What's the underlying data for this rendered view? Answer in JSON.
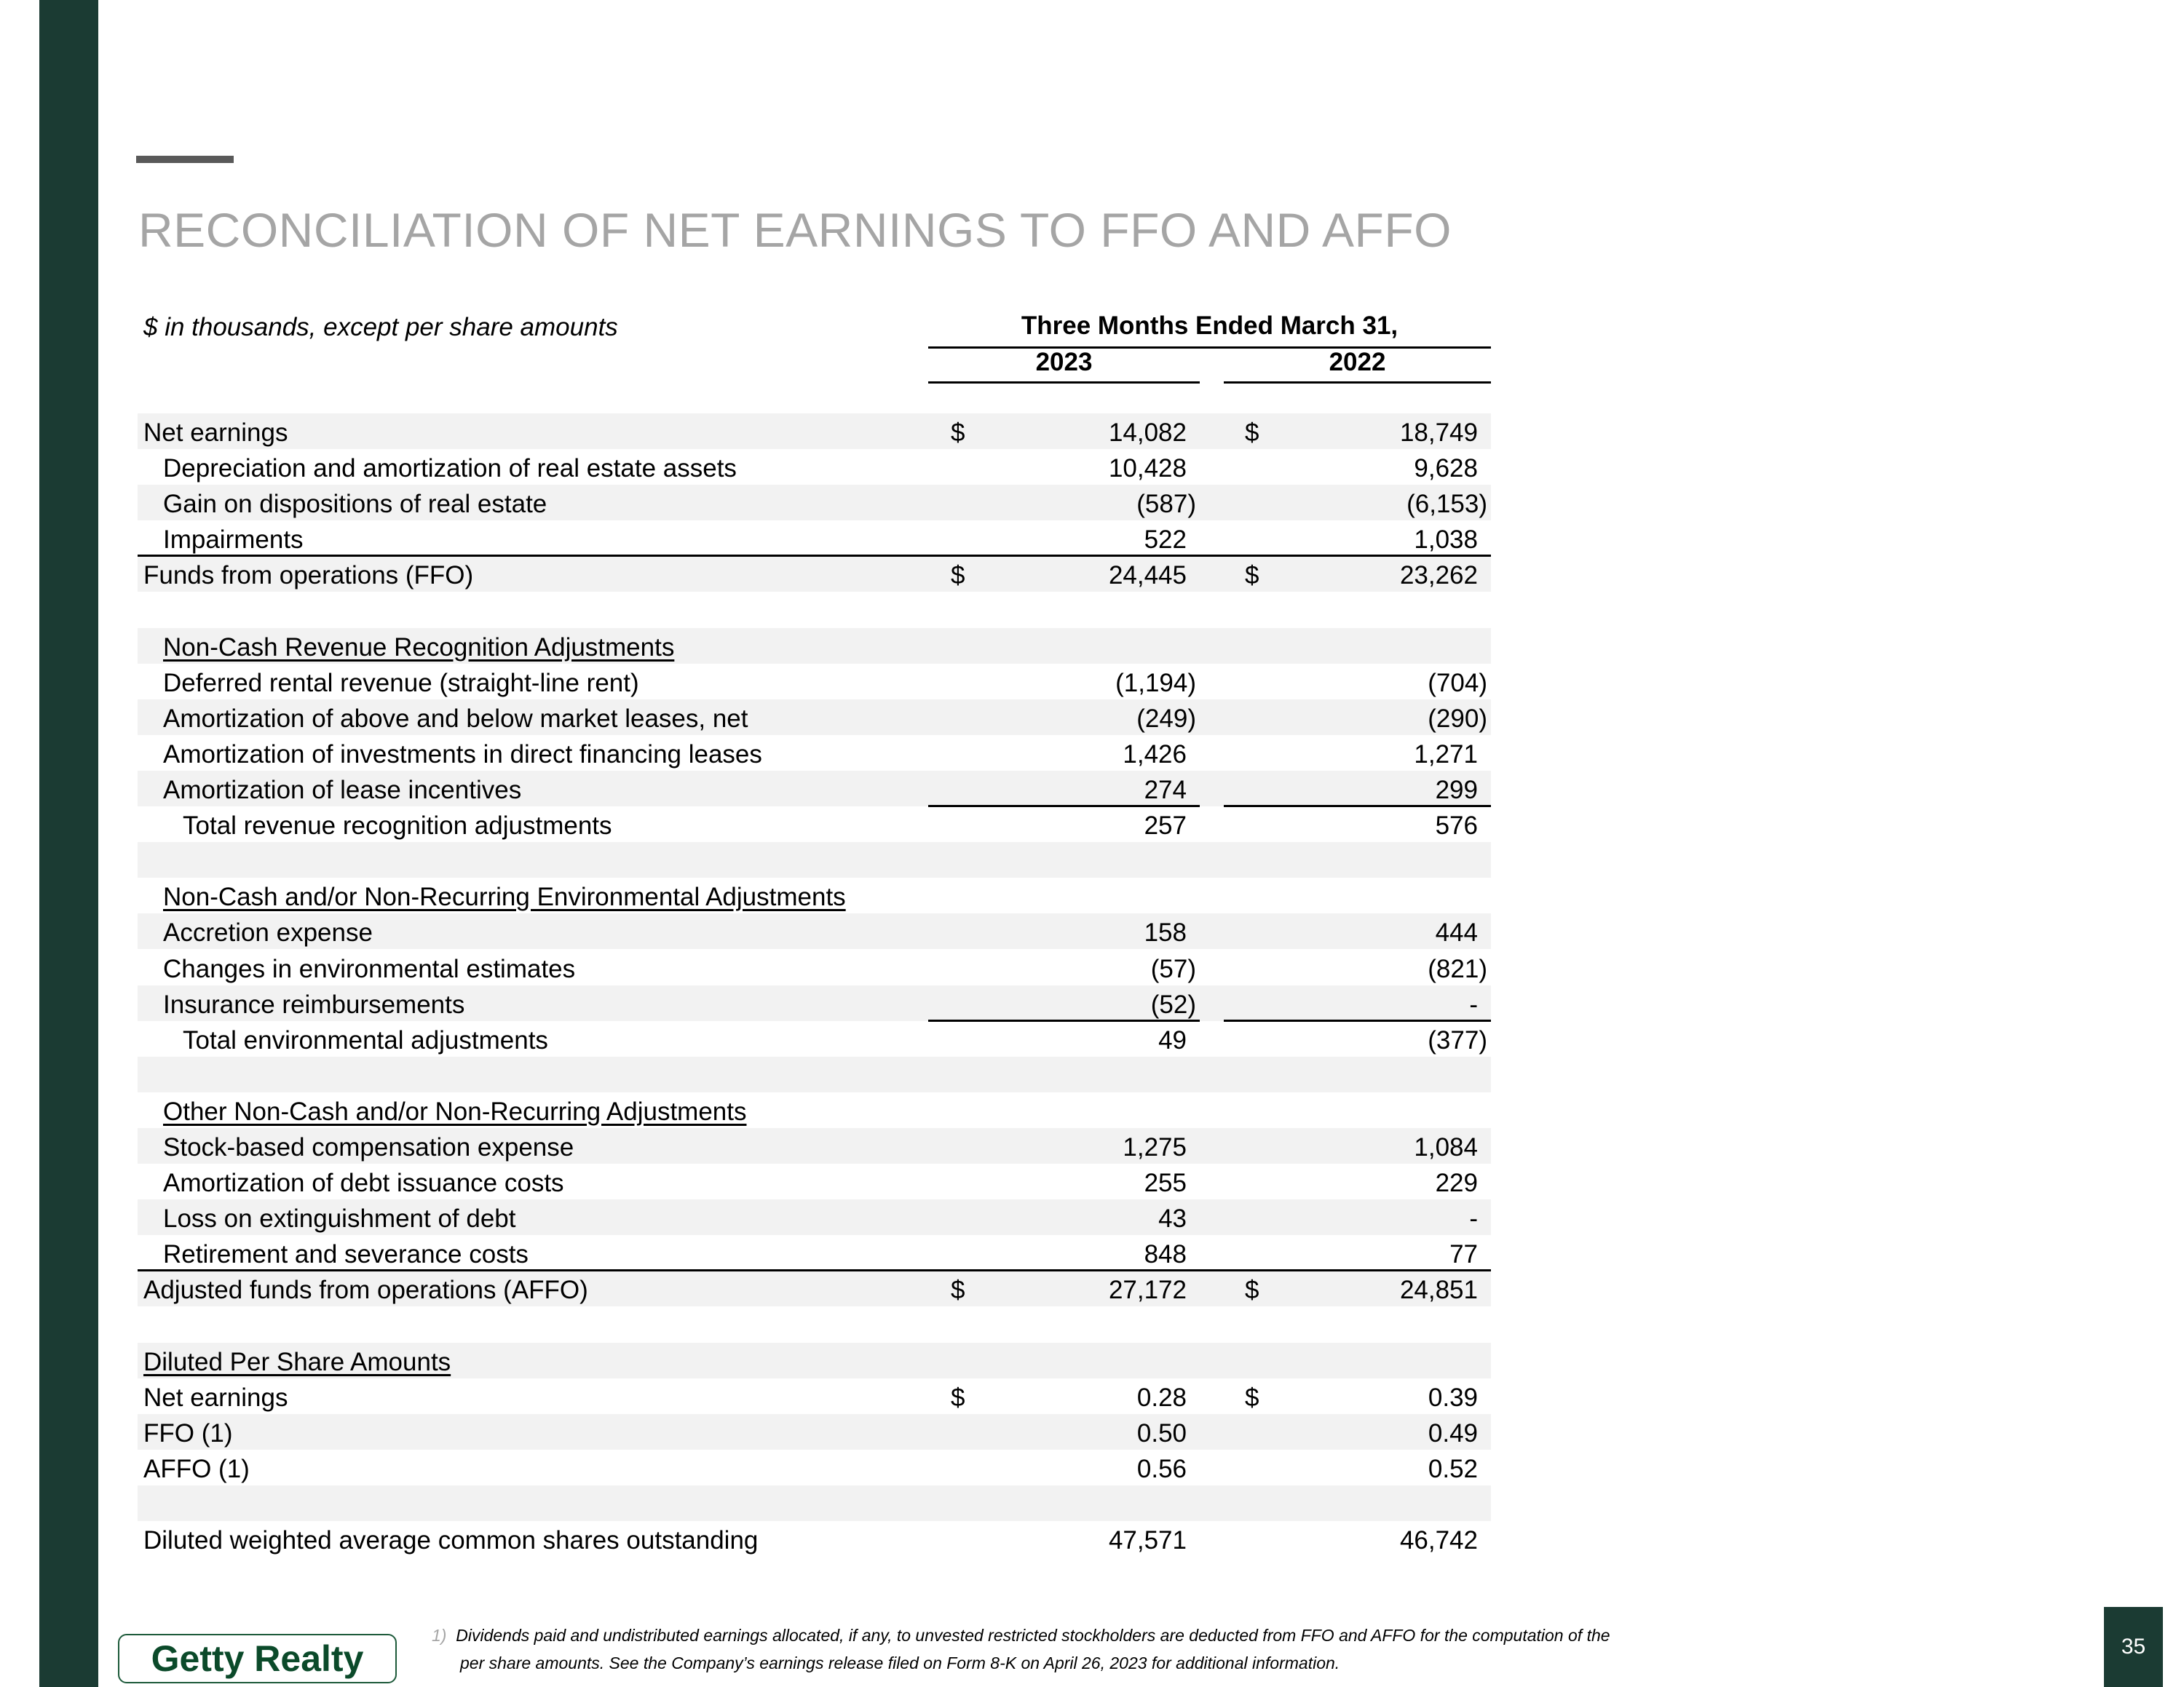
{
  "title": "RECONCILIATION OF NET EARNINGS TO FFO AND AFFO",
  "units_note": "$ in thousands, except per share amounts",
  "period_header": "Three Months Ended March 31,",
  "years": [
    "2023",
    "2022"
  ],
  "rows": [
    {
      "label": "Net earnings",
      "level": 0,
      "c1": "$",
      "v1": "14,082",
      "c2": "$",
      "v2": "18,749"
    },
    {
      "label": "Depreciation and amortization of real estate assets",
      "level": 1,
      "v1": "10,428",
      "v2": "9,628"
    },
    {
      "label": "Gain on dispositions of real estate",
      "level": 1,
      "v1": "(587)",
      "v2": "(6,153)"
    },
    {
      "label": "Impairments",
      "level": 1,
      "v1": "522",
      "v2": "1,038"
    },
    {
      "label": "Funds from operations (FFO)",
      "level": 0,
      "type": "total",
      "c1": "$",
      "v1": "24,445",
      "c2": "$",
      "v2": "23,262"
    },
    {
      "label": ""
    },
    {
      "label": "Non-Cash Revenue Recognition Adjustments",
      "level": 1,
      "type": "section"
    },
    {
      "label": "Deferred rental revenue (straight-line rent)",
      "level": 1,
      "v1": "(1,194)",
      "v2": "(704)"
    },
    {
      "label": "Amortization of above and below market leases, net",
      "level": 1,
      "v1": "(249)",
      "v2": "(290)"
    },
    {
      "label": "Amortization of investments in direct financing leases",
      "level": 1,
      "v1": "1,426",
      "v2": "1,271"
    },
    {
      "label": "Amortization of lease incentives",
      "level": 1,
      "v1": "274",
      "v2": "299"
    },
    {
      "label": "Total revenue recognition adjustments",
      "level": 2,
      "type": "subtotal",
      "v1": "257",
      "v2": "576"
    },
    {
      "label": ""
    },
    {
      "label": "Non-Cash and/or Non-Recurring Environmental Adjustments",
      "level": 1,
      "type": "section"
    },
    {
      "label": "Accretion expense",
      "level": 1,
      "v1": "158",
      "v2": "444"
    },
    {
      "label": "Changes in environmental estimates",
      "level": 1,
      "v1": "(57)",
      "v2": "(821)"
    },
    {
      "label": "Insurance reimbursements",
      "level": 1,
      "v1": "(52)",
      "v2": "-"
    },
    {
      "label": "Total environmental adjustments",
      "level": 2,
      "type": "subtotal",
      "v1": "49",
      "v2": "(377)"
    },
    {
      "label": ""
    },
    {
      "label": "Other Non-Cash and/or Non-Recurring Adjustments",
      "level": 1,
      "type": "section"
    },
    {
      "label": "Stock-based compensation expense",
      "level": 1,
      "v1": "1,275",
      "v2": "1,084"
    },
    {
      "label": "Amortization of debt issuance costs",
      "level": 1,
      "v1": "255",
      "v2": "229"
    },
    {
      "label": "Loss on extinguishment of debt",
      "level": 1,
      "v1": "43",
      "v2": "-"
    },
    {
      "label": "Retirement and severance costs",
      "level": 1,
      "v1": "848",
      "v2": "77"
    },
    {
      "label": "Adjusted funds from operations (AFFO)",
      "level": 0,
      "type": "total",
      "c1": "$",
      "v1": "27,172",
      "c2": "$",
      "v2": "24,851"
    },
    {
      "label": ""
    },
    {
      "label": "Diluted Per Share Amounts",
      "level": 0,
      "type": "section"
    },
    {
      "label": "Net earnings",
      "level": 0,
      "c1": "$",
      "v1": "0.28",
      "c2": "$",
      "v2": "0.39"
    },
    {
      "label": "FFO (1)",
      "level": 0,
      "v1": "0.50",
      "v2": "0.49"
    },
    {
      "label": "AFFO (1)",
      "level": 0,
      "v1": "0.56",
      "v2": "0.52"
    },
    {
      "label": ""
    },
    {
      "label": "Diluted weighted average common shares outstanding",
      "level": 0,
      "v1": "47,571",
      "v2": "46,742"
    }
  ],
  "footnote": {
    "marker": "1)",
    "line1": "Dividends paid and undistributed earnings allocated, if any, to unvested restricted stockholders are deducted from FFO and AFFO for the computation of the",
    "line2": "per share amounts. See the Company’s earnings release filed on Form 8-K on April 26, 2023 for additional information."
  },
  "logo_text": "Getty Realty",
  "page_number": "35",
  "colors": {
    "brand_green": "#1b3b33",
    "logo_green": "#0b4a2a",
    "title_gray": "#a5a5a5",
    "row_shade": "#f2f2f2"
  }
}
